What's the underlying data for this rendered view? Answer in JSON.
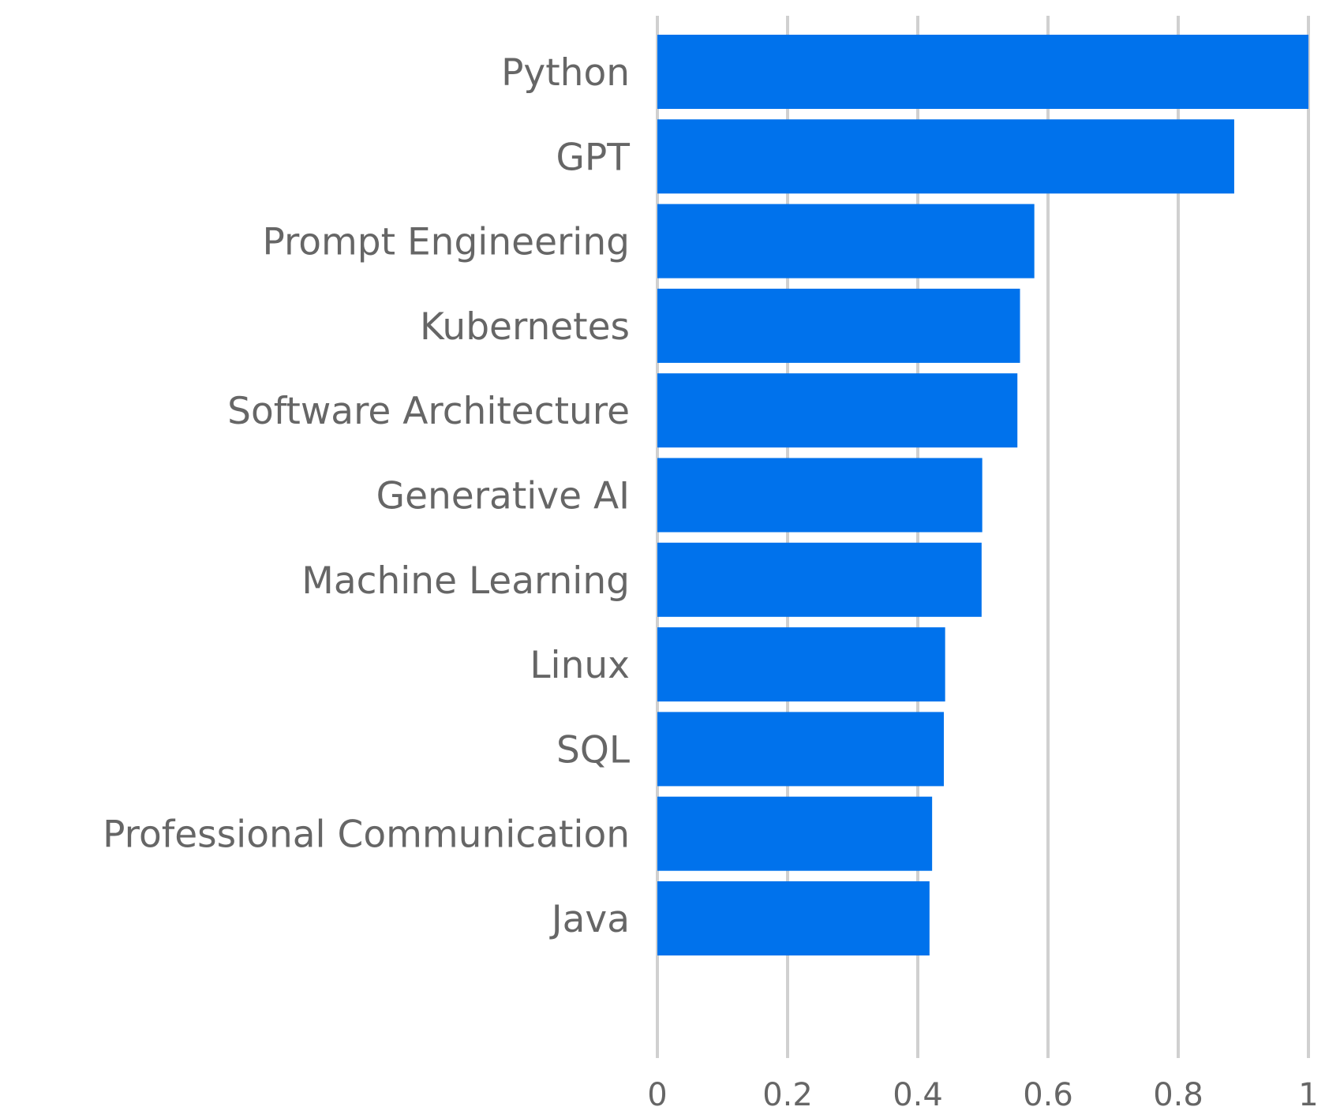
{
  "chart_data": {
    "type": "bar",
    "orientation": "horizontal",
    "title": "",
    "xlabel": "",
    "ylabel": "",
    "categories": [
      "Python",
      "GPT",
      "Prompt Engineering",
      "Kubernetes",
      "Software Architecture",
      "Generative AI",
      "Machine Learning",
      "Linux",
      "SQL",
      "Professional Communication",
      "Java"
    ],
    "values": [
      1.0,
      0.886,
      0.579,
      0.557,
      0.553,
      0.499,
      0.498,
      0.442,
      0.44,
      0.422,
      0.418
    ],
    "xlim": [
      0,
      1
    ],
    "xticks": [
      0,
      0.2,
      0.4,
      0.6,
      0.8,
      1
    ],
    "xtick_labels": [
      "0",
      "0.2",
      "0.4",
      "0.6",
      "0.8",
      "1"
    ],
    "grid": "vertical",
    "legend": "none",
    "colors": {
      "bar": "#0072EC",
      "grid": "#D0D0D0",
      "text": "#666666"
    }
  }
}
